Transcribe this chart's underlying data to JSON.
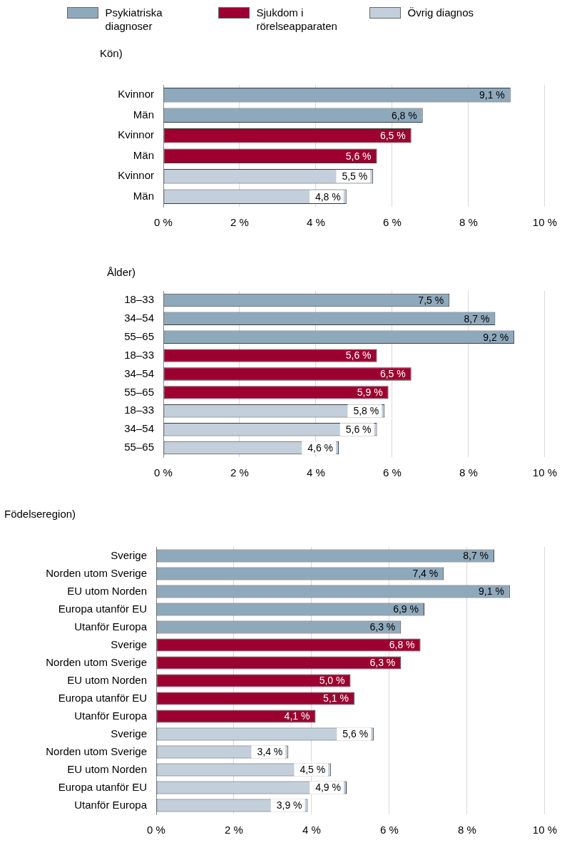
{
  "chart_data": [
    {
      "type": "bar",
      "orientation": "horizontal",
      "stacked": true,
      "title": "Kön)",
      "legend": "top",
      "grid": "x",
      "data_labels": true,
      "categories": [
        "Kvinnor",
        "Män",
        "Kvinnor",
        "Män",
        "Kvinnor",
        "Män"
      ],
      "xlim": [
        0,
        10
      ],
      "xticks": [
        {
          "value": 0,
          "label": "0 %"
        },
        {
          "value": 2,
          "label": "2 %"
        },
        {
          "value": 4,
          "label": "4 %"
        },
        {
          "value": 6,
          "label": "6 %"
        },
        {
          "value": 8,
          "label": "8 %"
        },
        {
          "value": 10,
          "label": "10 %"
        }
      ],
      "series": [
        {
          "name": "Psykiatriska diagnoser",
          "color": "#8fa9bc",
          "values": [
            9.1,
            6.8,
            null,
            null,
            null,
            null
          ],
          "value_labels": [
            "9,1 %",
            "6,8 %",
            null,
            null,
            null,
            null
          ]
        },
        {
          "name": "Sjukdom i rörelseapparaten",
          "color": "#9b0030",
          "values": [
            null,
            null,
            6.5,
            5.6,
            null,
            null
          ],
          "value_labels": [
            null,
            null,
            "6,5 %",
            "5,6 %",
            null,
            null
          ]
        },
        {
          "name": "Övrig diagnos",
          "color": "#c3d0db",
          "values": [
            null,
            null,
            null,
            null,
            5.5,
            4.8
          ],
          "value_labels": [
            null,
            null,
            null,
            null,
            "5,5 %",
            "4,8 %"
          ]
        }
      ]
    },
    {
      "type": "bar",
      "orientation": "horizontal",
      "stacked": true,
      "title": "Ålder)",
      "grid": "x",
      "data_labels": true,
      "categories": [
        "18–33",
        "34–54",
        "55–65",
        "18–33",
        "34–54",
        "55–65",
        "18–33",
        "34–54",
        "55–65"
      ],
      "xlim": [
        0,
        10
      ],
      "xticks": [
        {
          "value": 0,
          "label": "0 %"
        },
        {
          "value": 2,
          "label": "2 %"
        },
        {
          "value": 4,
          "label": "4 %"
        },
        {
          "value": 6,
          "label": "6 %"
        },
        {
          "value": 8,
          "label": "8 %"
        },
        {
          "value": 10,
          "label": "10 %"
        }
      ],
      "series": [
        {
          "color": "#8fa9bc",
          "values": [
            7.5,
            8.7,
            9.2,
            null,
            null,
            null,
            null,
            null,
            null
          ],
          "value_labels": [
            "7,5 %",
            "8,7 %",
            "9,2 %",
            null,
            null,
            null,
            null,
            null,
            null
          ]
        },
        {
          "color": "#9b0030",
          "values": [
            null,
            null,
            null,
            5.6,
            6.5,
            5.9,
            null,
            null,
            null
          ],
          "value_labels": [
            null,
            null,
            null,
            "5,6 %",
            "6,5 %",
            "5,9 %",
            null,
            null,
            null
          ]
        },
        {
          "color": "#c3d0db",
          "values": [
            null,
            null,
            null,
            null,
            null,
            null,
            5.8,
            5.6,
            4.6
          ],
          "value_labels": [
            null,
            null,
            null,
            null,
            null,
            null,
            "5,8 %",
            "5,6 %",
            "4,6 %"
          ]
        }
      ]
    },
    {
      "type": "bar",
      "orientation": "horizontal",
      "stacked": true,
      "title": "Födelseregion)",
      "grid": "x",
      "data_labels": true,
      "categories": [
        "Sverige",
        "Norden utom Sverige",
        "EU utom Norden",
        "Europa utanför EU",
        "Utanför Europa",
        "Sverige",
        "Norden utom Sverige",
        "EU utom Norden",
        "Europa utanför EU",
        "Utanför Europa",
        "Sverige",
        "Norden utom Sverige",
        "EU utom Norden",
        "Europa utanför EU",
        "Utanför Europa"
      ],
      "xlim": [
        0,
        10
      ],
      "xticks": [
        {
          "value": 0,
          "label": "0 %"
        },
        {
          "value": 2,
          "label": "2 %"
        },
        {
          "value": 4,
          "label": "4 %"
        },
        {
          "value": 6,
          "label": "6 %"
        },
        {
          "value": 8,
          "label": "8 %"
        },
        {
          "value": 10,
          "label": "10 %"
        }
      ],
      "series": [
        {
          "color": "#8fa9bc",
          "values": [
            8.7,
            7.4,
            9.1,
            6.9,
            6.3,
            null,
            null,
            null,
            null,
            null,
            null,
            null,
            null,
            null,
            null
          ],
          "value_labels": [
            "8,7 %",
            "7,4 %",
            "9,1 %",
            "6,9 %",
            "6,3 %",
            null,
            null,
            null,
            null,
            null,
            null,
            null,
            null,
            null,
            null
          ]
        },
        {
          "color": "#9b0030",
          "values": [
            null,
            null,
            null,
            null,
            null,
            6.8,
            6.3,
            5.0,
            5.1,
            4.1,
            null,
            null,
            null,
            null,
            null
          ],
          "value_labels": [
            null,
            null,
            null,
            null,
            null,
            "6,8 %",
            "6,3 %",
            "5,0 %",
            "5,1 %",
            "4,1 %",
            null,
            null,
            null,
            null,
            null
          ]
        },
        {
          "color": "#c3d0db",
          "values": [
            null,
            null,
            null,
            null,
            null,
            null,
            null,
            null,
            null,
            null,
            5.6,
            3.4,
            4.5,
            4.9,
            3.9
          ],
          "value_labels": [
            null,
            null,
            null,
            null,
            null,
            null,
            null,
            null,
            null,
            null,
            "5,6 %",
            "3,4 %",
            "4,5 %",
            "4,9 %",
            "3,9 %"
          ]
        }
      ]
    }
  ]
}
